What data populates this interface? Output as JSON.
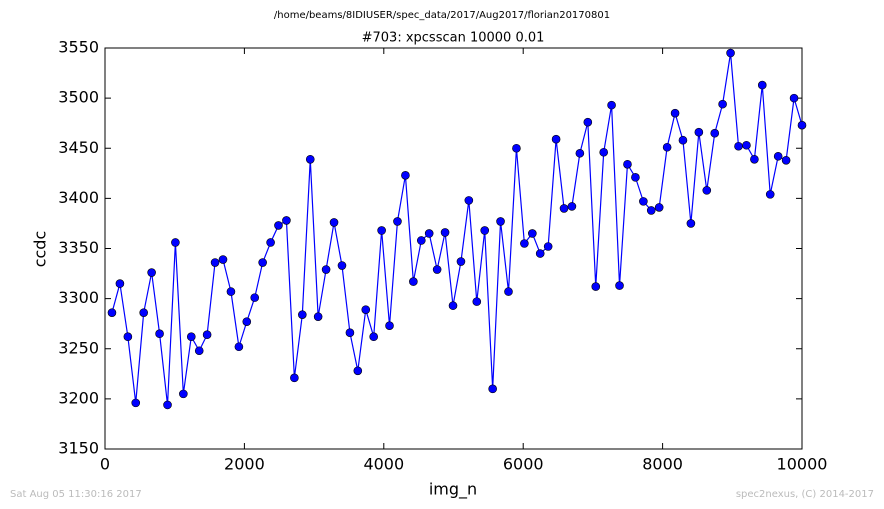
{
  "header": {
    "path": "/home/beams/8IDIUSER/spec_data/2017/Aug2017/florian20170801"
  },
  "footer": {
    "date": "Sat Aug 05 11:30:16 2017",
    "credit": "spec2nexus, (C) 2014-2017"
  },
  "chart_data": {
    "type": "line",
    "title": "#703: xpcsscan 10000 0.01",
    "x_label": "img_n",
    "y_label": "ccdc",
    "x": [
      100,
      214,
      328,
      441,
      555,
      669,
      783,
      897,
      1010,
      1124,
      1238,
      1352,
      1465,
      1579,
      1693,
      1807,
      1921,
      2034,
      2148,
      2262,
      2376,
      2489,
      2603,
      2717,
      2831,
      2945,
      3058,
      3172,
      3286,
      3400,
      3514,
      3627,
      3741,
      3855,
      3969,
      4082,
      4196,
      4310,
      4424,
      4538,
      4651,
      4765,
      4879,
      4993,
      5107,
      5220,
      5334,
      5448,
      5562,
      5675,
      5789,
      5903,
      6017,
      6131,
      6244,
      6358,
      6472,
      6586,
      6699,
      6813,
      6927,
      7041,
      7155,
      7268,
      7382,
      7496,
      7610,
      7724,
      7837,
      7951,
      8065,
      8179,
      8292,
      8406,
      8520,
      8634,
      8748,
      8861,
      8975,
      9089,
      9203,
      9317,
      9430,
      9544,
      9658,
      9772,
      9886,
      10000
    ],
    "series": [
      {
        "color": "#0000ff",
        "values": [
          3286,
          3315,
          3262,
          3196,
          3286,
          3326,
          3265,
          3194,
          3356,
          3205,
          3262,
          3248,
          3264,
          3336,
          3339,
          3307,
          3252,
          3277,
          3301,
          3336,
          3356,
          3373,
          3378,
          3221,
          3284,
          3439,
          3282,
          3329,
          3376,
          3333,
          3266,
          3228,
          3289,
          3262,
          3368,
          3273,
          3377,
          3423,
          3317,
          3358,
          3365,
          3329,
          3366,
          3293,
          3337,
          3398,
          3297,
          3368,
          3210,
          3377,
          3307,
          3450,
          3355,
          3365,
          3345,
          3352,
          3459,
          3390,
          3392,
          3445,
          3476,
          3312,
          3446,
          3493,
          3313,
          3434,
          3421,
          3397,
          3388,
          3391,
          3451,
          3485,
          3458,
          3375,
          3466,
          3408,
          3465,
          3494,
          3545,
          3452,
          3453,
          3439,
          3513,
          3404,
          3442,
          3438,
          3500,
          3473
        ]
      }
    ],
    "xlim": [
      0,
      10000
    ],
    "xticks": [
      0,
      2000,
      4000,
      6000,
      8000,
      10000
    ],
    "ylim": [
      3150,
      3550
    ],
    "yticks": [
      3150,
      3200,
      3250,
      3300,
      3350,
      3400,
      3450,
      3500,
      3550
    ]
  }
}
